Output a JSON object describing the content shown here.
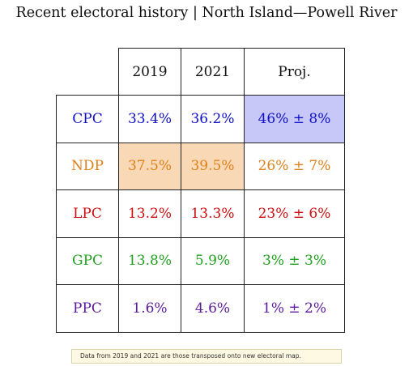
{
  "title": "Recent electoral history | North Island—Powell River",
  "chart_data": {
    "type": "table",
    "columns": [
      "2019",
      "2021",
      "Proj."
    ],
    "rows": [
      {
        "party": "CPC",
        "color": "#1010c8",
        "values": [
          "33.4%",
          "36.2%",
          "46% ± 8%"
        ],
        "highlight": [
          null,
          null,
          "#c8c8f8"
        ]
      },
      {
        "party": "NDP",
        "color": "#e0801a",
        "values": [
          "37.5%",
          "39.5%",
          "26% ± 7%"
        ],
        "highlight": [
          "#f9d9b5",
          "#f9d9b5",
          null
        ]
      },
      {
        "party": "LPC",
        "color": "#cc1010",
        "values": [
          "13.2%",
          "13.3%",
          "23% ± 6%"
        ],
        "highlight": [
          null,
          null,
          null
        ]
      },
      {
        "party": "GPC",
        "color": "#20a020",
        "values": [
          "13.8%",
          "5.9%",
          "3% ± 3%"
        ],
        "highlight": [
          null,
          null,
          null
        ]
      },
      {
        "party": "PPC",
        "color": "#5a1a9a",
        "values": [
          "1.6%",
          "4.6%",
          "1% ± 2%"
        ],
        "highlight": [
          null,
          null,
          null
        ]
      }
    ]
  },
  "note": "Data from 2019 and 2021 are those transposed onto new electoral map."
}
